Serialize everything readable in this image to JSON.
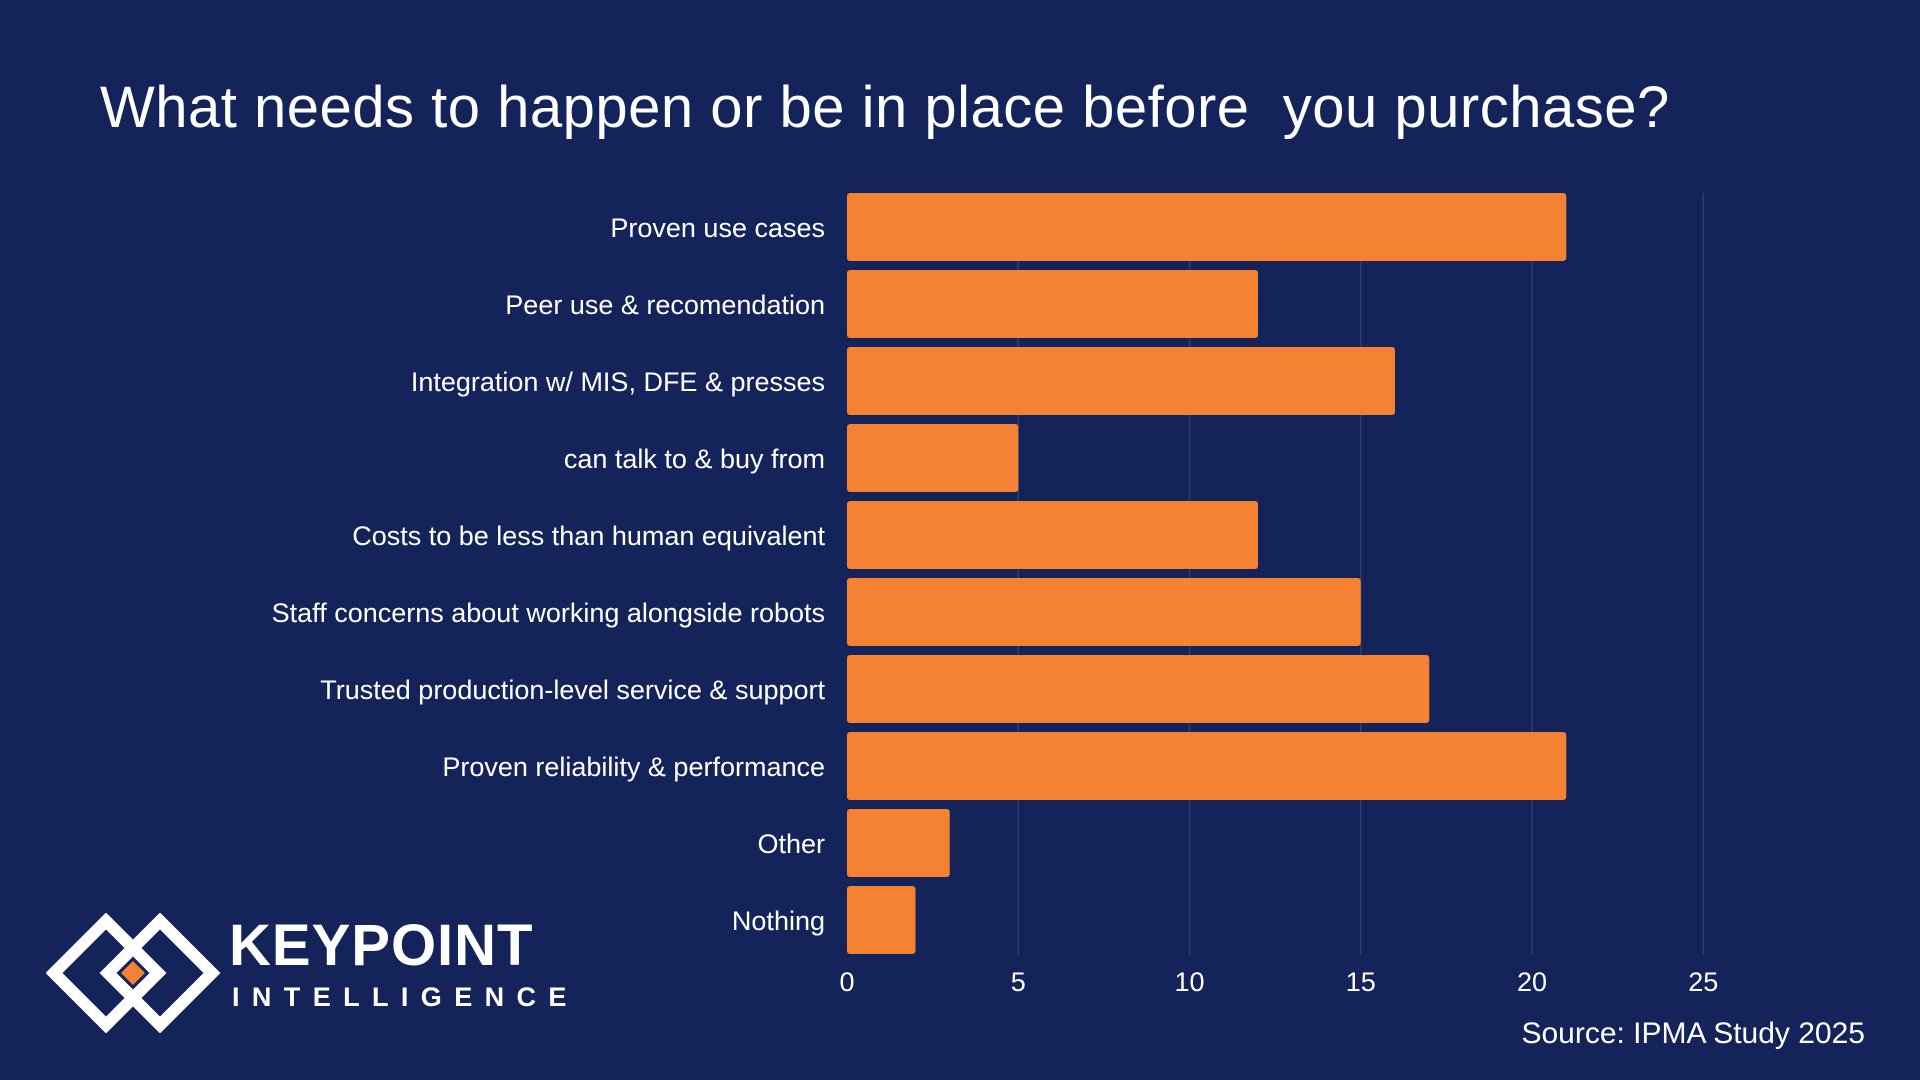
{
  "colors": {
    "background": "#14245a",
    "bar": "#f58133",
    "grid": "#2e3d72",
    "text": "#ffffff",
    "logo_accent": "#f58133"
  },
  "chart_data": {
    "type": "bar",
    "orientation": "horizontal",
    "title": "What needs to happen or be in place before  you purchase?",
    "categories": [
      "Proven use cases",
      "Peer use & recomendation",
      "Integration w/ MIS, DFE & presses",
      "can talk to & buy from",
      "Costs to be less than human equivalent",
      "Staff concerns about working alongside robots",
      "Trusted production-level service & support",
      "Proven reliability & performance",
      "Other",
      "Nothing"
    ],
    "values": [
      21,
      12,
      16,
      5,
      12,
      15,
      17,
      21,
      3,
      2
    ],
    "xlim": [
      0,
      25
    ],
    "xticks": [
      0,
      5,
      10,
      15,
      20,
      25
    ],
    "xlabel": "",
    "ylabel": "",
    "grid": true,
    "legend": "none"
  },
  "source_label": "Source: IPMA Study 2025",
  "logo": {
    "name": "KEYPOINT",
    "sub": "INTELLIGENCE",
    "icon": "keypoint-diamond-logo-icon"
  }
}
